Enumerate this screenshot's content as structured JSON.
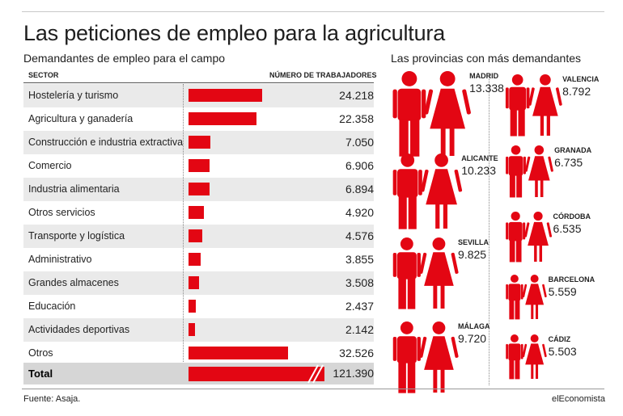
{
  "title": "Las peticiones de empleo para la agricultura",
  "left_subtitle": "Demandantes de empleo para el campo",
  "right_subtitle": "Las provincias con más demandantes",
  "col_sector": "SECTOR",
  "col_workers": "NÚMERO DE TRABAJADORES",
  "source": "Fuente: Asaja.",
  "brand": "elEconomista",
  "colors": {
    "accent": "#e30613",
    "shade": "#eaeaea",
    "total_bg": "#d6d6d6"
  },
  "icons": [
    "man-icon",
    "woman-icon"
  ],
  "chart_data": [
    {
      "type": "bar",
      "orientation": "horizontal",
      "categories": [
        "Hostelería y turismo",
        "Agricultura y ganadería",
        "Construcción e industria extractiva",
        "Comercio",
        "Industria alimentaria",
        "Otros servicios",
        "Transporte y logística",
        "Administrativo",
        "Grandes almacenes",
        "Educación",
        "Actividades deportivas",
        "Otros"
      ],
      "values": [
        24218,
        22358,
        7050,
        6906,
        6894,
        4920,
        4576,
        3855,
        3508,
        2437,
        2142,
        32526
      ],
      "labels": [
        "24.218",
        "22.358",
        "7.050",
        "6.906",
        "6.894",
        "4.920",
        "4.576",
        "3.855",
        "3.508",
        "2.437",
        "2.142",
        "32.526"
      ],
      "total": {
        "label": "Total",
        "value": 121390,
        "display": "121.390"
      },
      "title": "Demandantes de empleo para el campo",
      "xlabel": "NÚMERO DE TRABAJADORES",
      "ylabel": "SECTOR"
    },
    {
      "type": "pictogram",
      "title": "Las provincias con más demandantes",
      "categories": [
        "MADRID",
        "ALICANTE",
        "SEVILLA",
        "MÁLAGA",
        "VALENCIA",
        "GRANADA",
        "CÓRDOBA",
        "BARCELONA",
        "CÁDIZ"
      ],
      "values": [
        13338,
        10233,
        9825,
        9720,
        8792,
        6735,
        6535,
        5559,
        5503
      ],
      "labels": [
        "13.338",
        "10.233",
        "9.825",
        "9.720",
        "8.792",
        "6.735",
        "6.535",
        "5.559",
        "5.503"
      ]
    }
  ]
}
